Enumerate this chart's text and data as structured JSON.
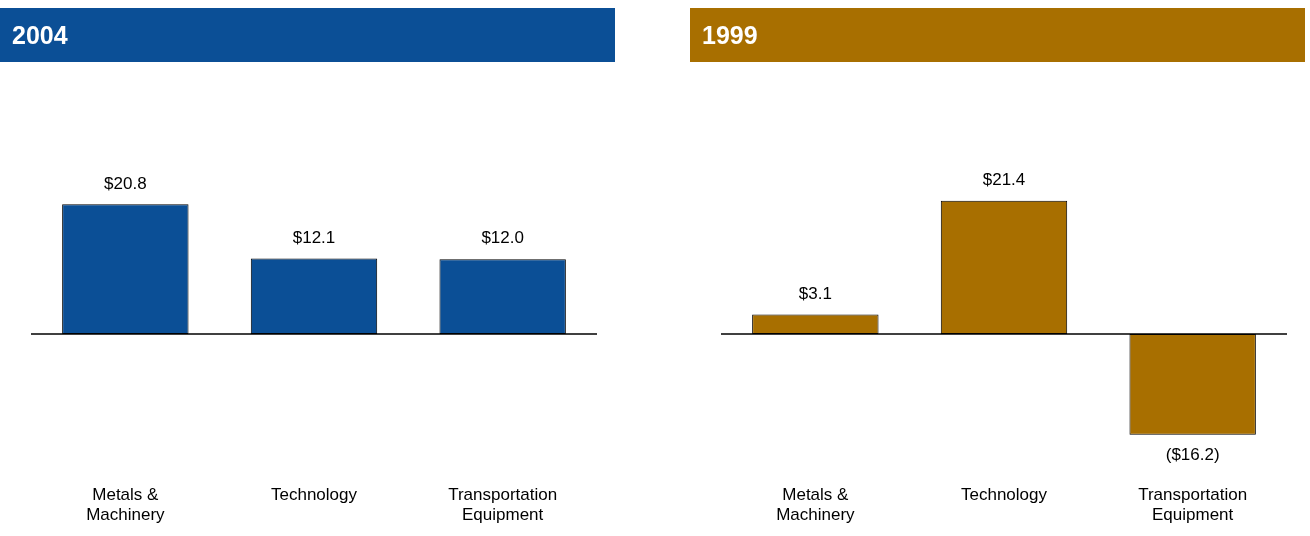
{
  "chart_data": [
    {
      "type": "bar",
      "title": "2004",
      "categories": [
        "Metals & Machinery",
        "Technology",
        "Transportation Equipment"
      ],
      "values": [
        20.8,
        12.1,
        12.0
      ],
      "value_labels": [
        "$20.8",
        "$12.1",
        "$12.0"
      ],
      "color": "#0b4f96",
      "legend": false,
      "grid": false
    },
    {
      "type": "bar",
      "title": "1999",
      "categories": [
        "Metals & Machinery",
        "Technology",
        "Transportation Equipment"
      ],
      "values": [
        3.1,
        21.4,
        -16.2
      ],
      "value_labels": [
        "$3.1",
        "$21.4",
        "($16.2)"
      ],
      "color": "#a86f00",
      "legend": false,
      "grid": false
    }
  ]
}
